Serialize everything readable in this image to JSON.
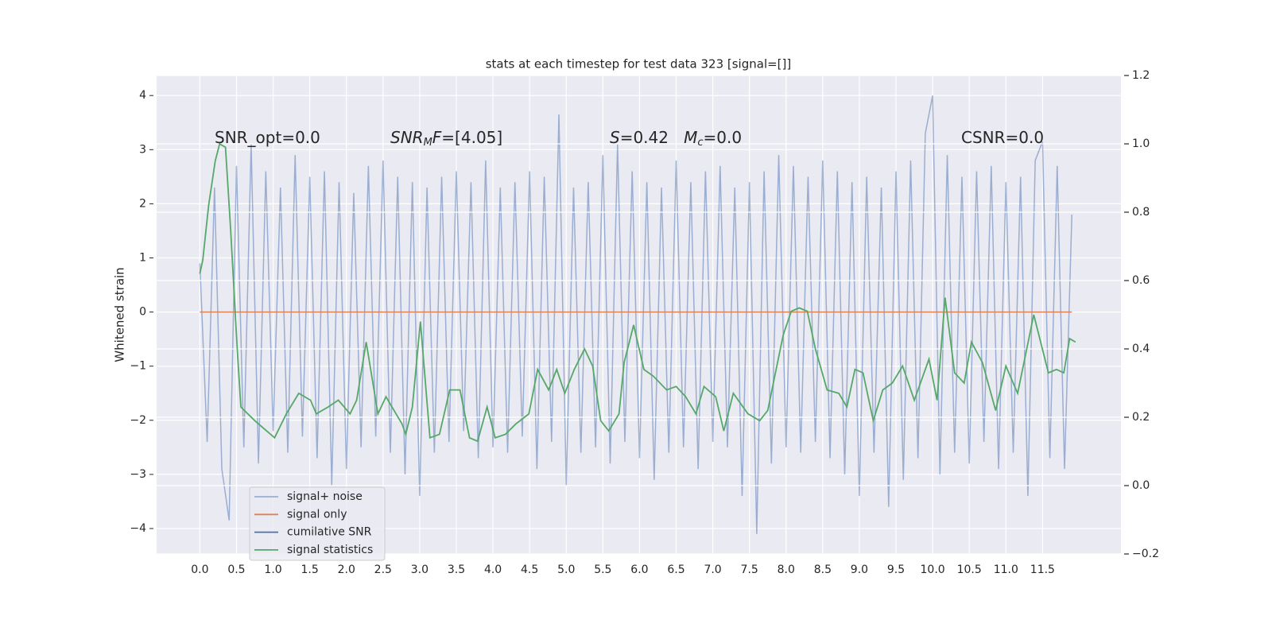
{
  "chart_data": {
    "type": "line",
    "title": "stats at each timestep for test data 323 [signal=[]]",
    "ylabel": "Whitened strain",
    "xlim": [
      -0.59,
      12.57
    ],
    "ylim": [
      -4.47,
      4.37
    ],
    "y2lim": [
      -0.2,
      1.2
    ],
    "xticks": [
      {
        "value": 0,
        "label": "0.0"
      },
      0.5,
      {
        "value": 1,
        "label": "1.0"
      },
      1.5,
      {
        "value": 2,
        "label": "2.0"
      },
      2.5,
      {
        "value": 3,
        "label": "3.0"
      },
      3.5,
      {
        "value": 4,
        "label": "4.0"
      },
      4.5,
      {
        "value": 5,
        "label": "5.0"
      },
      5.5,
      {
        "value": 6,
        "label": "6.0"
      },
      6.5,
      {
        "value": 7,
        "label": "7.0"
      },
      7.5,
      {
        "value": 8,
        "label": "8.0"
      },
      8.5,
      {
        "value": 9,
        "label": "9.0"
      },
      9.5,
      {
        "value": 10,
        "label": "10.0"
      },
      10.5,
      {
        "value": 11,
        "label": "11.0"
      },
      11.5
    ],
    "yticks": [
      {
        "value": -4,
        "label": "−4"
      },
      {
        "value": -3,
        "label": "−3"
      },
      {
        "value": -2,
        "label": "−2"
      },
      {
        "value": -1,
        "label": "−1"
      },
      0,
      1,
      2,
      3,
      4
    ],
    "y2ticks": [
      {
        "value": -0.2,
        "label": "−0.2"
      },
      {
        "value": 0,
        "label": "0.0"
      },
      0.2,
      0.4,
      0.6,
      0.8,
      {
        "value": 1,
        "label": "1.0"
      },
      1.2
    ],
    "grid": true,
    "legend": "lower left",
    "annotations": [
      {
        "parts": [
          {
            "text": "SNR_opt=0.0"
          }
        ]
      },
      {
        "parts": [
          {
            "text": "SNR",
            "italic": true
          },
          {
            "text": "M",
            "italic": true,
            "sub": true
          },
          {
            "text": "F=[4.05]",
            "italic_first": true
          }
        ]
      },
      {
        "parts": [
          {
            "text": "S",
            "italic": true
          },
          {
            "text": "=0.42   "
          },
          {
            "text": "M",
            "italic": true
          },
          {
            "text": "c",
            "italic": true,
            "sub": true
          },
          {
            "text": "=0.0"
          }
        ]
      },
      {
        "parts": [
          {
            "text": "CSNR=0.0"
          }
        ]
      }
    ],
    "series": [
      {
        "name": "signal+ noise",
        "color": "#4c72b0",
        "opacity": 0.5,
        "x": [
          0,
          0.1,
          0.2,
          0.3,
          0.4,
          0.5,
          0.6,
          0.7,
          0.8,
          0.9,
          1,
          1.1,
          1.2,
          1.3,
          1.4,
          1.5,
          1.6,
          1.7,
          1.8,
          1.9,
          2,
          2.1,
          2.2,
          2.3,
          2.4,
          2.5,
          2.6,
          2.7,
          2.8,
          2.9,
          3,
          3.1,
          3.2,
          3.3,
          3.4,
          3.5,
          3.6,
          3.7,
          3.8,
          3.9,
          4,
          4.1,
          4.2,
          4.3,
          4.4,
          4.5,
          4.6,
          4.7,
          4.8,
          4.9,
          5,
          5.1,
          5.2,
          5.3,
          5.4,
          5.5,
          5.6,
          5.7,
          5.8,
          5.9,
          6,
          6.1,
          6.2,
          6.3,
          6.4,
          6.5,
          6.6,
          6.7,
          6.8,
          6.9,
          7,
          7.1,
          7.2,
          7.3,
          7.4,
          7.5,
          7.6,
          7.7,
          7.8,
          7.9,
          8,
          8.1,
          8.2,
          8.3,
          8.4,
          8.5,
          8.6,
          8.7,
          8.8,
          8.9,
          9,
          9.1,
          9.2,
          9.3,
          9.4,
          9.5,
          9.6,
          9.7,
          9.8,
          9.9,
          10,
          10.1,
          10.2,
          10.3,
          10.4,
          10.5,
          10.6,
          10.7,
          10.8,
          10.9,
          11,
          11.1,
          11.2,
          11.3,
          11.4,
          11.5,
          11.6,
          11.7,
          11.8,
          11.9
        ],
        "values": [
          0.9,
          -2.4,
          2.3,
          -2.9,
          -3.85,
          2.7,
          -2.5,
          3.1,
          -2.8,
          2.6,
          -2.2,
          2.3,
          -2.6,
          2.9,
          -2.3,
          2.5,
          -2.7,
          2.6,
          -3.2,
          2.4,
          -2.9,
          2.2,
          -2.5,
          2.7,
          -2.3,
          2.8,
          -2.6,
          2.5,
          -3.0,
          2.4,
          -3.4,
          2.3,
          -2.6,
          2.5,
          -2.4,
          2.6,
          -2.2,
          2.4,
          -2.7,
          2.8,
          -2.5,
          2.3,
          -2.6,
          2.4,
          -2.3,
          2.6,
          -2.9,
          2.5,
          -2.4,
          3.65,
          -3.2,
          2.3,
          -2.6,
          2.4,
          -2.5,
          2.9,
          -2.8,
          3.1,
          -2.4,
          2.6,
          -2.7,
          2.4,
          -3.1,
          2.3,
          -2.6,
          2.8,
          -2.5,
          2.4,
          -2.9,
          2.6,
          -2.4,
          2.7,
          -2.5,
          2.3,
          -3.4,
          2.4,
          -4.1,
          2.6,
          -2.8,
          2.9,
          -2.5,
          2.7,
          -2.6,
          2.5,
          -2.4,
          2.8,
          -2.7,
          2.6,
          -3.0,
          2.4,
          -3.4,
          2.5,
          -2.6,
          2.3,
          -3.6,
          2.6,
          -3.1,
          2.8,
          -2.7,
          3.3,
          4.0,
          -3.0,
          2.9,
          -2.6,
          2.5,
          -2.8,
          2.6,
          -2.4,
          2.7,
          -2.9,
          2.4,
          -2.6,
          2.5,
          -3.4,
          2.8,
          3.15,
          -2.7,
          2.7,
          -2.9,
          1.8
        ]
      },
      {
        "name": "signal only",
        "color": "#dd8452",
        "x": [
          0,
          11.9
        ],
        "values": [
          0,
          0
        ]
      },
      {
        "name": "cumilative SNR",
        "color": "#4c72b0",
        "x": [],
        "values": []
      },
      {
        "name": "signal statistics",
        "color": "#55a868",
        "axis": "y2",
        "x": [
          0,
          0.04,
          0.12,
          0.21,
          0.27,
          0.35,
          0.42,
          0.51,
          0.56,
          0.75,
          1.02,
          1.18,
          1.35,
          1.51,
          1.59,
          1.75,
          1.89,
          2.05,
          2.14,
          2.27,
          2.43,
          2.54,
          2.76,
          2.81,
          2.9,
          3.01,
          3.14,
          3.27,
          3.41,
          3.55,
          3.68,
          3.79,
          3.92,
          4.03,
          4.17,
          4.31,
          4.49,
          4.61,
          4.76,
          4.87,
          4.98,
          5.11,
          5.25,
          5.36,
          5.47,
          5.58,
          5.72,
          5.79,
          5.92,
          6.06,
          6.19,
          6.37,
          6.5,
          6.63,
          6.77,
          6.88,
          7.04,
          7.15,
          7.28,
          7.48,
          7.64,
          7.75,
          7.96,
          8.07,
          8.18,
          8.29,
          8.4,
          8.56,
          8.72,
          8.83,
          8.94,
          9.05,
          9.19,
          9.32,
          9.45,
          9.59,
          9.75,
          9.95,
          10.06,
          10.17,
          10.3,
          10.43,
          10.53,
          10.68,
          10.86,
          11,
          11.16,
          11.38,
          11.58,
          11.69,
          11.79,
          11.87,
          11.95
        ],
        "values": [
          0.62,
          0.66,
          0.82,
          0.95,
          1.0,
          0.99,
          0.75,
          0.4,
          0.23,
          0.19,
          0.14,
          0.21,
          0.27,
          0.25,
          0.21,
          0.23,
          0.25,
          0.21,
          0.25,
          0.42,
          0.21,
          0.26,
          0.18,
          0.15,
          0.23,
          0.48,
          0.14,
          0.15,
          0.28,
          0.28,
          0.14,
          0.13,
          0.23,
          0.14,
          0.15,
          0.18,
          0.21,
          0.34,
          0.28,
          0.34,
          0.27,
          0.34,
          0.4,
          0.35,
          0.19,
          0.16,
          0.21,
          0.36,
          0.47,
          0.34,
          0.32,
          0.28,
          0.29,
          0.26,
          0.21,
          0.29,
          0.26,
          0.16,
          0.27,
          0.21,
          0.19,
          0.22,
          0.44,
          0.51,
          0.52,
          0.51,
          0.4,
          0.28,
          0.27,
          0.23,
          0.34,
          0.33,
          0.19,
          0.28,
          0.3,
          0.35,
          0.25,
          0.37,
          0.25,
          0.55,
          0.33,
          0.3,
          0.42,
          0.36,
          0.22,
          0.35,
          0.27,
          0.5,
          0.33,
          0.34,
          0.33,
          0.43,
          0.42
        ]
      }
    ]
  }
}
